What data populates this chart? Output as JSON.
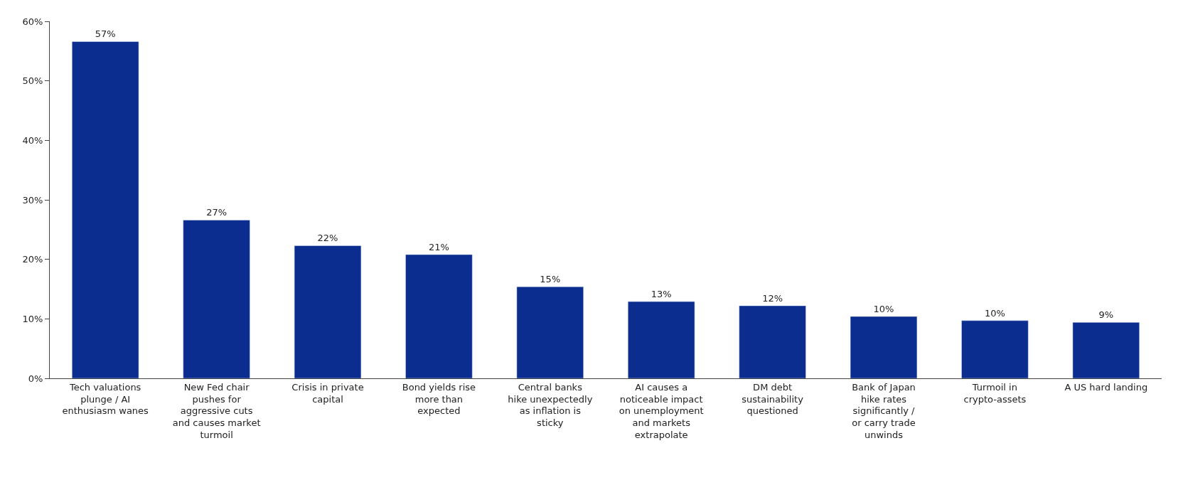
{
  "chart_data": {
    "type": "bar",
    "categories": [
      "Tech valuations plunge / AI enthusiasm wanes",
      "New Fed chair pushes for aggressive cuts and causes market turmoil",
      "Crisis in private capital",
      "Bond yields rise more than expected",
      "Central banks hike unexpectedly as inflation is sticky",
      "AI causes a noticeable impact on unemployment and markets extrapolate",
      "DM debt sustainability questioned",
      "Bank of Japan hike rates significantly / or carry trade unwinds",
      "Turmoil in crypto-assets",
      "A US hard landing"
    ],
    "values": [
      56.6,
      26.6,
      22.3,
      20.8,
      15.4,
      12.9,
      12.2,
      10.4,
      9.7,
      9.4
    ],
    "value_labels": [
      "57%",
      "27%",
      "22%",
      "21%",
      "15%",
      "13%",
      "12%",
      "10%",
      "10%",
      "9%"
    ],
    "color": "#0a2d8f",
    "ylim": [
      0,
      60
    ],
    "yticks": [
      {
        "value": 0,
        "label": "0%"
      },
      {
        "value": 10,
        "label": "10%"
      },
      {
        "value": 20,
        "label": "20%"
      },
      {
        "value": 30,
        "label": "30%"
      },
      {
        "value": 40,
        "label": "40%"
      },
      {
        "value": 50,
        "label": "50%"
      },
      {
        "value": 60,
        "label": "60%"
      }
    ]
  }
}
